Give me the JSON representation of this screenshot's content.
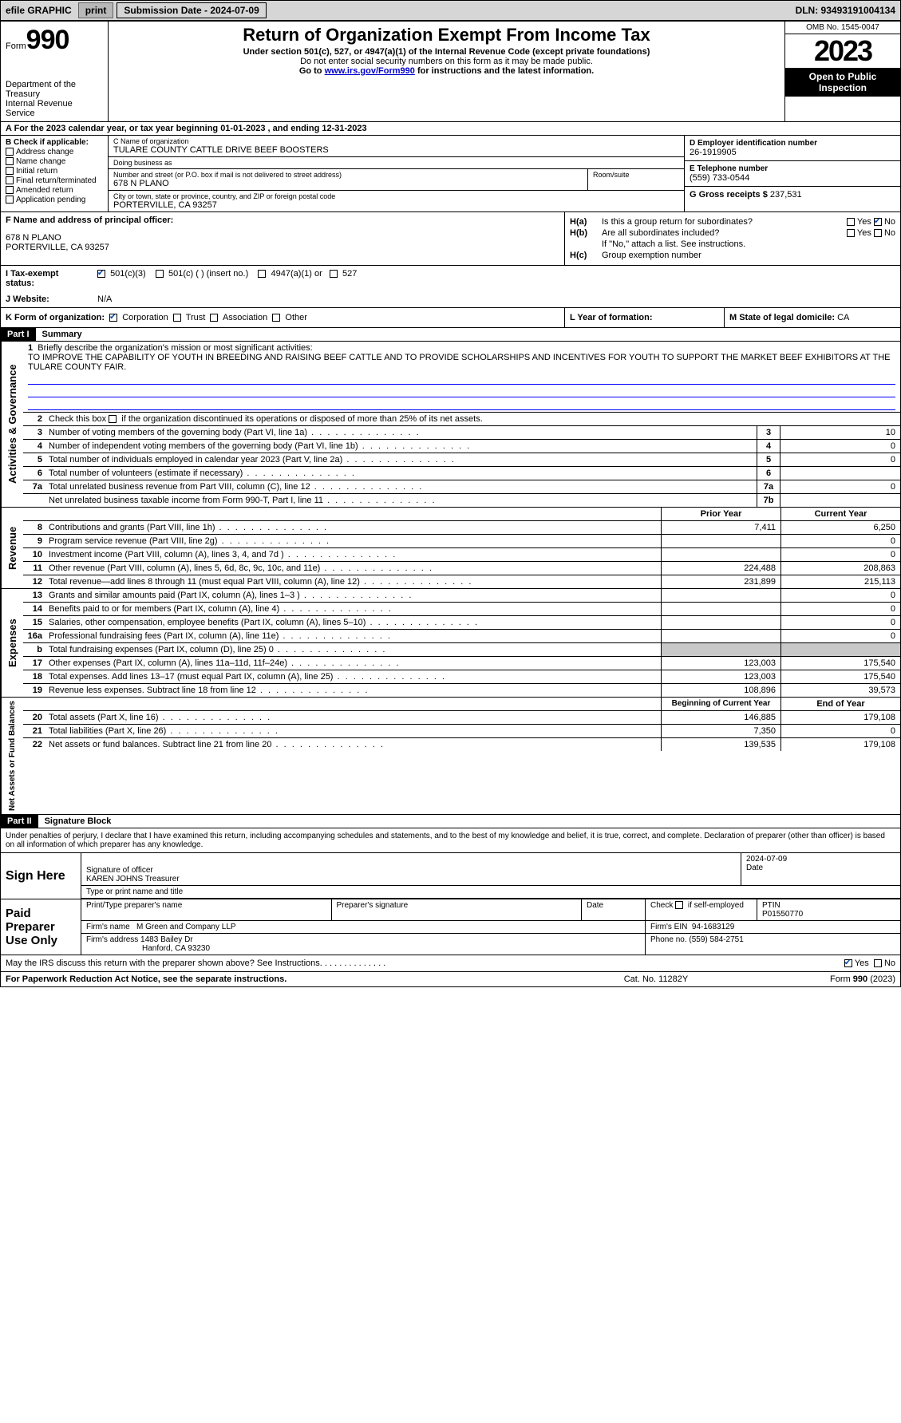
{
  "topbar": {
    "efile": "efile GRAPHIC",
    "print": "print",
    "sub_label": "Submission Date - 2024-07-09",
    "dln": "DLN: 93493191004134"
  },
  "header": {
    "form_word": "Form",
    "form_num": "990",
    "dept": "Department of the Treasury\nInternal Revenue Service",
    "title": "Return of Organization Exempt From Income Tax",
    "sub": "Under section 501(c), 527, or 4947(a)(1) of the Internal Revenue Code (except private foundations)",
    "sub2": "Do not enter social security numbers on this form as it may be made public.",
    "goto_pre": "Go to ",
    "goto_link": "www.irs.gov/Form990",
    "goto_post": " for instructions and the latest information.",
    "omb": "OMB No. 1545-0047",
    "year": "2023",
    "inspect": "Open to Public Inspection"
  },
  "row_a": "A For the 2023 calendar year, or tax year beginning 01-01-2023    , and ending 12-31-2023",
  "col_b": {
    "hdr": "B Check if applicable:",
    "items": [
      "Address change",
      "Name change",
      "Initial return",
      "Final return/terminated",
      "Amended return",
      "Application pending"
    ]
  },
  "col_c": {
    "name_lbl": "C Name of organization",
    "name": "TULARE COUNTY CATTLE DRIVE BEEF BOOSTERS",
    "dba_lbl": "Doing business as",
    "dba": "",
    "street_lbl": "Number and street (or P.O. box if mail is not delivered to street address)",
    "street": "678 N PLANO",
    "room_lbl": "Room/suite",
    "city_lbl": "City or town, state or province, country, and ZIP or foreign postal code",
    "city": "PORTERVILLE, CA  93257"
  },
  "col_d": {
    "ein_lbl": "D Employer identification number",
    "ein": "26-1919905",
    "tel_lbl": "E Telephone number",
    "tel": "(559) 733-0544",
    "gross_lbl": "G Gross receipts $",
    "gross": "237,531"
  },
  "col_f": {
    "lbl": "F  Name and address of principal officer:",
    "addr1": "678 N PLANO",
    "addr2": "PORTERVILLE, CA  93257"
  },
  "col_h": {
    "ha_lbl": "H(a)",
    "ha_txt": "Is this a group return for subordinates?",
    "hb_lbl": "H(b)",
    "hb_txt": "Are all subordinates included?",
    "hb_note": "If \"No,\" attach a list. See instructions.",
    "hc_lbl": "H(c)",
    "hc_txt": "Group exemption number",
    "yes": "Yes",
    "no": "No"
  },
  "row_i": {
    "lbl": "I    Tax-exempt status:",
    "opts": [
      "501(c)(3)",
      "501(c) (  ) (insert no.)",
      "4947(a)(1) or",
      "527"
    ]
  },
  "row_j": {
    "lbl": "J    Website:",
    "val": "N/A"
  },
  "row_k": {
    "lbl": "K Form of organization:",
    "opts": [
      "Corporation",
      "Trust",
      "Association",
      "Other"
    ]
  },
  "row_l": {
    "lbl": "L Year of formation:",
    "val": ""
  },
  "row_m": {
    "lbl": "M State of legal domicile:",
    "val": "CA"
  },
  "part1": {
    "hdr": "Part I",
    "title": "Summary",
    "gov_label": "Activities & Governance",
    "rev_label": "Revenue",
    "exp_label": "Expenses",
    "net_label": "Net Assets or Fund Balances",
    "line1_num": "1",
    "line1": "Briefly describe the organization's mission or most significant activities:",
    "mission": "TO IMPROVE THE CAPABILITY OF YOUTH IN BREEDING AND RAISING BEEF CATTLE AND TO PROVIDE SCHOLARSHIPS AND INCENTIVES FOR YOUTH TO SUPPORT THE MARKET BEEF EXHIBITORS AT THE TULARE COUNTY FAIR.",
    "line2_num": "2",
    "line2": "Check this box      if the organization discontinued its operations or disposed of more than 25% of its net assets.",
    "lines_small": [
      {
        "n": "3",
        "t": "Number of voting members of the governing body (Part VI, line 1a)",
        "k": "3",
        "v": "10"
      },
      {
        "n": "4",
        "t": "Number of independent voting members of the governing body (Part VI, line 1b)",
        "k": "4",
        "v": "0"
      },
      {
        "n": "5",
        "t": "Total number of individuals employed in calendar year 2023 (Part V, line 2a)",
        "k": "5",
        "v": "0"
      },
      {
        "n": "6",
        "t": "Total number of volunteers (estimate if necessary)",
        "k": "6",
        "v": ""
      },
      {
        "n": "7a",
        "t": "Total unrelated business revenue from Part VIII, column (C), line 12",
        "k": "7a",
        "v": "0"
      },
      {
        "n": "",
        "t": "Net unrelated business taxable income from Form 990-T, Part I, line 11",
        "k": "7b",
        "v": ""
      }
    ],
    "col_prior_hdr": "Prior Year",
    "col_curr_hdr": "Current Year",
    "rev_lines": [
      {
        "n": "8",
        "t": "Contributions and grants (Part VIII, line 1h)",
        "p": "7,411",
        "c": "6,250"
      },
      {
        "n": "9",
        "t": "Program service revenue (Part VIII, line 2g)",
        "p": "",
        "c": "0"
      },
      {
        "n": "10",
        "t": "Investment income (Part VIII, column (A), lines 3, 4, and 7d )",
        "p": "",
        "c": "0"
      },
      {
        "n": "11",
        "t": "Other revenue (Part VIII, column (A), lines 5, 6d, 8c, 9c, 10c, and 11e)",
        "p": "224,488",
        "c": "208,863"
      },
      {
        "n": "12",
        "t": "Total revenue—add lines 8 through 11 (must equal Part VIII, column (A), line 12)",
        "p": "231,899",
        "c": "215,113"
      }
    ],
    "exp_lines": [
      {
        "n": "13",
        "t": "Grants and similar amounts paid (Part IX, column (A), lines 1–3 )",
        "p": "",
        "c": "0"
      },
      {
        "n": "14",
        "t": "Benefits paid to or for members (Part IX, column (A), line 4)",
        "p": "",
        "c": "0"
      },
      {
        "n": "15",
        "t": "Salaries, other compensation, employee benefits (Part IX, column (A), lines 5–10)",
        "p": "",
        "c": "0"
      },
      {
        "n": "16a",
        "t": "Professional fundraising fees (Part IX, column (A), line 11e)",
        "p": "",
        "c": "0"
      },
      {
        "n": "b",
        "t": "Total fundraising expenses (Part IX, column (D), line 25) 0",
        "p": "GREY",
        "c": "GREY"
      },
      {
        "n": "17",
        "t": "Other expenses (Part IX, column (A), lines 11a–11d, 11f–24e)",
        "p": "123,003",
        "c": "175,540"
      },
      {
        "n": "18",
        "t": "Total expenses. Add lines 13–17 (must equal Part IX, column (A), line 25)",
        "p": "123,003",
        "c": "175,540"
      },
      {
        "n": "19",
        "t": "Revenue less expenses. Subtract line 18 from line 12",
        "p": "108,896",
        "c": "39,573"
      }
    ],
    "net_hdr_p": "Beginning of Current Year",
    "net_hdr_c": "End of Year",
    "net_lines": [
      {
        "n": "20",
        "t": "Total assets (Part X, line 16)",
        "p": "146,885",
        "c": "179,108"
      },
      {
        "n": "21",
        "t": "Total liabilities (Part X, line 26)",
        "p": "7,350",
        "c": "0"
      },
      {
        "n": "22",
        "t": "Net assets or fund balances. Subtract line 21 from line 20",
        "p": "139,535",
        "c": "179,108"
      }
    ]
  },
  "part2": {
    "hdr": "Part II",
    "title": "Signature Block",
    "decl": "Under penalties of perjury, I declare that I have examined this return, including accompanying schedules and statements, and to the best of my knowledge and belief, it is true, correct, and complete. Declaration of preparer (other than officer) is based on all information of which preparer has any knowledge.",
    "sign_here": "Sign Here",
    "sig_officer_lbl": "Signature of officer",
    "sig_name": "KAREN JOHNS Treasurer",
    "sig_title_lbl": "Type or print name and title",
    "sig_date_lbl": "Date",
    "sig_date": "2024-07-09",
    "paid": "Paid Preparer Use Only",
    "prep_name_lbl": "Print/Type preparer's name",
    "prep_sig_lbl": "Preparer's signature",
    "date_lbl": "Date",
    "check_lbl": "Check      if self-employed",
    "ptin_lbl": "PTIN",
    "ptin": "P01550770",
    "firm_name_lbl": "Firm's name",
    "firm_name": "M Green and Company LLP",
    "firm_ein_lbl": "Firm's EIN",
    "firm_ein": "94-1683129",
    "firm_addr_lbl": "Firm's address",
    "firm_addr1": "1483 Bailey Dr",
    "firm_addr2": "Hanford, CA  93230",
    "phone_lbl": "Phone no.",
    "phone": "(559) 584-2751",
    "discuss": "May the IRS discuss this return with the preparer shown above? See Instructions.",
    "yes": "Yes",
    "no": "No"
  },
  "footer": {
    "l": "For Paperwork Reduction Act Notice, see the separate instructions.",
    "m": "Cat. No. 11282Y",
    "r": "Form 990 (2023)"
  }
}
